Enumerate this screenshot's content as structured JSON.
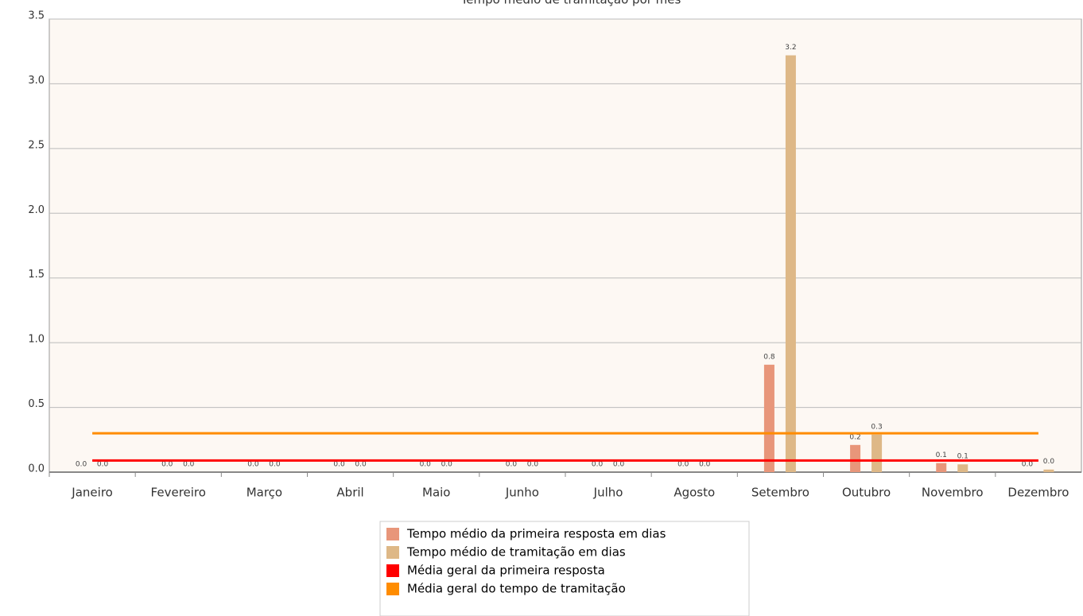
{
  "chart_data": {
    "type": "bar",
    "title": "Tempo médio de tramitação por mês",
    "categories": [
      "Janeiro",
      "Fevereiro",
      "Março",
      "Abril",
      "Maio",
      "Junho",
      "Julho",
      "Agosto",
      "Setembro",
      "Outubro",
      "Novembro",
      "Dezembro"
    ],
    "series": [
      {
        "name": "Tempo médio da primeira resposta em dias",
        "color": "#e8967a",
        "values": [
          0,
          0,
          0,
          0,
          0,
          0,
          0,
          0,
          0.83,
          0.21,
          0.07,
          0
        ],
        "value_labels": [
          "0.0",
          "0.0",
          "0.0",
          "0.0",
          "0.0",
          "0.0",
          "0.0",
          "0.0",
          "0.8",
          "0.2",
          "0.1",
          "0.0"
        ]
      },
      {
        "name": "Tempo médio de tramitação em dias",
        "color": "#deb887",
        "values": [
          0,
          0,
          0,
          0,
          0,
          0,
          0,
          0,
          3.22,
          0.29,
          0.06,
          0.02
        ],
        "value_labels": [
          "0.0",
          "0.0",
          "0.0",
          "0.0",
          "0.0",
          "0.0",
          "0.0",
          "0.0",
          "3.2",
          "0.3",
          "0.1",
          "0.0"
        ]
      }
    ],
    "reference_lines": [
      {
        "name": "Média geral da primeira resposta",
        "color": "#ff0000",
        "value": 0.09
      },
      {
        "name": "Média geral do tempo de tramitação",
        "color": "#ff8c00",
        "value": 0.3
      }
    ],
    "ylim": [
      0,
      3.5
    ],
    "yticks": [
      {
        "value": 0,
        "label": "0.0"
      },
      {
        "value": 0.5,
        "label": "0.5"
      },
      {
        "value": 1,
        "label": "1.0"
      },
      {
        "value": 1.5,
        "label": "1.5"
      },
      {
        "value": 2,
        "label": "2.0"
      },
      {
        "value": 2.5,
        "label": "2.5"
      },
      {
        "value": 3,
        "label": "3.0"
      },
      {
        "value": 3.5,
        "label": "3.5"
      }
    ],
    "grid": true
  }
}
